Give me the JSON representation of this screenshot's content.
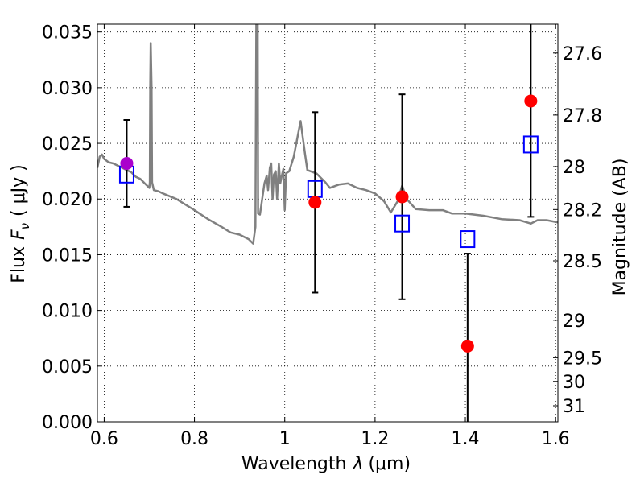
{
  "chart_data": {
    "type": "scatter",
    "xlabel_prefix": "Wavelength",
    "xlabel_symbol": "λ",
    "xlabel_unit": "(μm)",
    "ylabel_prefix": "Flux",
    "ylabel_symbol": "F",
    "ylabel_subscript": "ν",
    "ylabel_unit": "( μJy )",
    "y2label": "Magnitude (AB)",
    "xlim": [
      0.585,
      1.605
    ],
    "ylim": [
      0.0,
      0.0357
    ],
    "xticks": [
      0.6,
      0.8,
      1.0,
      1.2,
      1.4,
      1.6
    ],
    "xtick_labels": [
      "0.6",
      "0.8",
      "1",
      "1.2",
      "1.4",
      "1.6"
    ],
    "yticks": [
      0.0,
      0.005,
      0.01,
      0.015,
      0.02,
      0.025,
      0.03,
      0.035
    ],
    "ytick_labels": [
      "0.000",
      "0.005",
      "0.010",
      "0.015",
      "0.020",
      "0.025",
      "0.030",
      "0.035"
    ],
    "mag_ticks": [
      27.6,
      27.8,
      28,
      28.2,
      28.5,
      29,
      29.5,
      30,
      31
    ],
    "mag_tick_labels": [
      "27.6",
      "27.8",
      "28",
      "28.2",
      "28.5",
      "29",
      "29.5",
      "30",
      "31"
    ],
    "grid": true,
    "colors": {
      "model": "#808080",
      "observed": "#ff0000",
      "observed_first": "#aa00cc",
      "model_box": "#0000ff",
      "errorbar": "#000000"
    },
    "model_spectrum": [
      [
        0.585,
        0.0228
      ],
      [
        0.59,
        0.0238
      ],
      [
        0.595,
        0.024
      ],
      [
        0.6,
        0.0236
      ],
      [
        0.61,
        0.0233
      ],
      [
        0.62,
        0.0232
      ],
      [
        0.63,
        0.023
      ],
      [
        0.64,
        0.0228
      ],
      [
        0.65,
        0.0226
      ],
      [
        0.66,
        0.0224
      ],
      [
        0.67,
        0.022
      ],
      [
        0.68,
        0.0218
      ],
      [
        0.69,
        0.0214
      ],
      [
        0.7,
        0.021
      ],
      [
        0.701,
        0.0215
      ],
      [
        0.702,
        0.03
      ],
      [
        0.703,
        0.034
      ],
      [
        0.705,
        0.03
      ],
      [
        0.706,
        0.0215
      ],
      [
        0.71,
        0.0208
      ],
      [
        0.72,
        0.0207
      ],
      [
        0.73,
        0.0205
      ],
      [
        0.76,
        0.02
      ],
      [
        0.8,
        0.019
      ],
      [
        0.83,
        0.0182
      ],
      [
        0.86,
        0.0175
      ],
      [
        0.88,
        0.017
      ],
      [
        0.9,
        0.0168
      ],
      [
        0.92,
        0.0164
      ],
      [
        0.93,
        0.016
      ],
      [
        0.935,
        0.0175
      ],
      [
        0.937,
        0.0357
      ],
      [
        0.94,
        0.0357
      ],
      [
        0.941,
        0.0187
      ],
      [
        0.945,
        0.0186
      ],
      [
        0.95,
        0.02
      ],
      [
        0.955,
        0.0214
      ],
      [
        0.96,
        0.0221
      ],
      [
        0.963,
        0.0208
      ],
      [
        0.967,
        0.0228
      ],
      [
        0.97,
        0.0232
      ],
      [
        0.973,
        0.02
      ],
      [
        0.976,
        0.0222
      ],
      [
        0.98,
        0.0225
      ],
      [
        0.983,
        0.02
      ],
      [
        0.987,
        0.0232
      ],
      [
        0.99,
        0.0214
      ],
      [
        0.993,
        0.022
      ],
      [
        0.997,
        0.0227
      ],
      [
        1.0,
        0.019
      ],
      [
        1.003,
        0.0223
      ],
      [
        1.01,
        0.0225
      ],
      [
        1.02,
        0.0238
      ],
      [
        1.035,
        0.027
      ],
      [
        1.045,
        0.024
      ],
      [
        1.05,
        0.0226
      ],
      [
        1.07,
        0.0223
      ],
      [
        1.09,
        0.0215
      ],
      [
        1.1,
        0.021
      ],
      [
        1.12,
        0.0213
      ],
      [
        1.14,
        0.0214
      ],
      [
        1.16,
        0.021
      ],
      [
        1.18,
        0.0208
      ],
      [
        1.2,
        0.0205
      ],
      [
        1.22,
        0.0198
      ],
      [
        1.235,
        0.0188
      ],
      [
        1.25,
        0.0198
      ],
      [
        1.26,
        0.0212
      ],
      [
        1.27,
        0.02
      ],
      [
        1.29,
        0.0191
      ],
      [
        1.32,
        0.019
      ],
      [
        1.35,
        0.019
      ],
      [
        1.37,
        0.0187
      ],
      [
        1.4,
        0.0187
      ],
      [
        1.44,
        0.0185
      ],
      [
        1.48,
        0.0182
      ],
      [
        1.52,
        0.0181
      ],
      [
        1.545,
        0.0178
      ],
      [
        1.56,
        0.0181
      ],
      [
        1.58,
        0.0181
      ],
      [
        1.605,
        0.0179
      ]
    ],
    "model_boxes": [
      {
        "x": 0.65,
        "y": 0.0222
      },
      {
        "x": 1.067,
        "y": 0.0209
      },
      {
        "x": 1.26,
        "y": 0.0178
      },
      {
        "x": 1.405,
        "y": 0.0164
      },
      {
        "x": 1.545,
        "y": 0.0249
      }
    ],
    "observed_points": [
      {
        "x": 0.65,
        "y": 0.0232,
        "yerr": 0.0039,
        "color_key": "observed_first"
      },
      {
        "x": 1.067,
        "y": 0.0197,
        "yerr": 0.0081,
        "color_key": "observed"
      },
      {
        "x": 1.26,
        "y": 0.0202,
        "yerr": 0.0092,
        "color_key": "observed"
      },
      {
        "x": 1.405,
        "y": 0.0068,
        "yerr": 0.0083,
        "color_key": "observed"
      },
      {
        "x": 1.545,
        "y": 0.0288,
        "yerr": 0.0104,
        "color_key": "observed"
      }
    ]
  }
}
